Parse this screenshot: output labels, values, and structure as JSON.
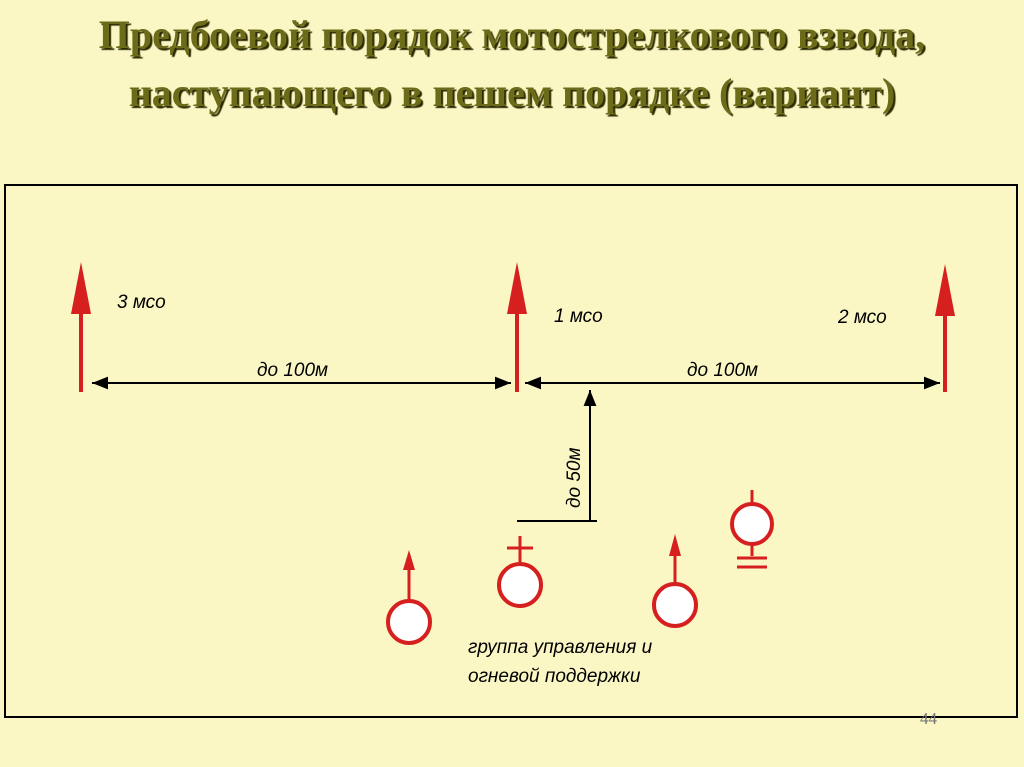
{
  "title": {
    "line1": "Предбоевой порядок мотострелкового взвода,",
    "line2": "наступающего в пешем порядке (вариант)"
  },
  "diagram": {
    "squads": [
      {
        "label": "3 мсо"
      },
      {
        "label": "1 мсо"
      },
      {
        "label": "2 мсо"
      }
    ],
    "distances": {
      "left": "до 100м",
      "right": "до 100м",
      "depth": "до 50м"
    },
    "group_caption": {
      "line1": "группа управления и",
      "line2": "огневой поддержки"
    },
    "colors": {
      "symbol_red": "#d61f1f",
      "symbol_fill": "#ffffff",
      "line": "#000000"
    }
  },
  "page_number": "44"
}
